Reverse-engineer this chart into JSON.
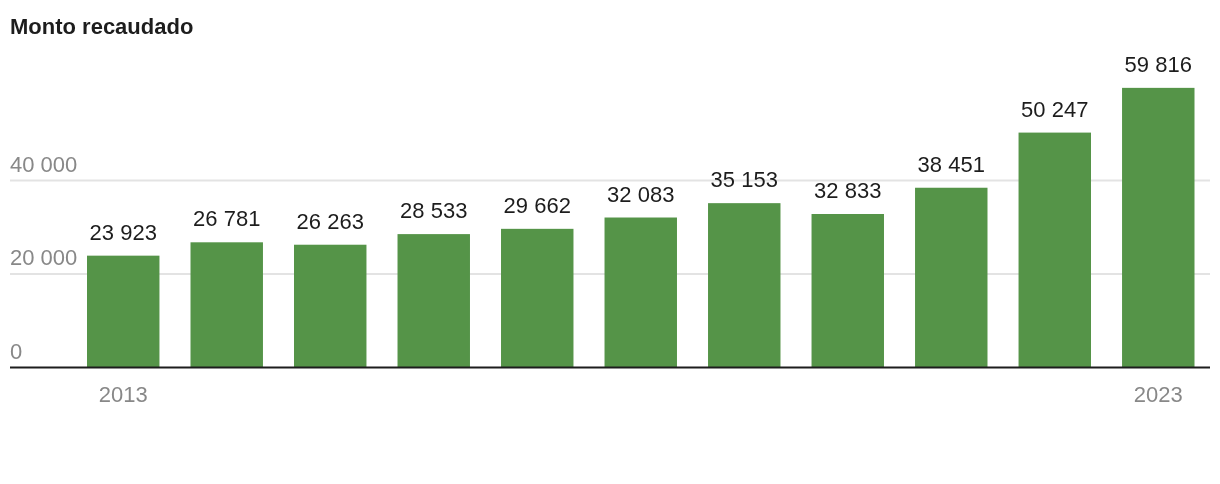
{
  "chart_data": {
    "type": "bar",
    "title": "Monto recaudado",
    "categories": [
      "2013",
      null,
      null,
      null,
      null,
      null,
      null,
      null,
      null,
      null,
      "2023"
    ],
    "values": [
      23923,
      26781,
      26263,
      28533,
      29662,
      32083,
      35153,
      32833,
      38451,
      50247,
      59816
    ],
    "color": "#559448",
    "value_labels": [
      "23 923",
      "26 781",
      "26 263",
      "28 533",
      "29 662",
      "32 083",
      "35 153",
      "32 833",
      "38 451",
      "50 247",
      "59 816"
    ],
    "ylim": [
      0,
      60000
    ],
    "yticks": [
      0,
      {
        "value": 20000,
        "label": "20 000"
      },
      {
        "value": 40000,
        "label": "40 000"
      }
    ],
    "grid": "y"
  }
}
